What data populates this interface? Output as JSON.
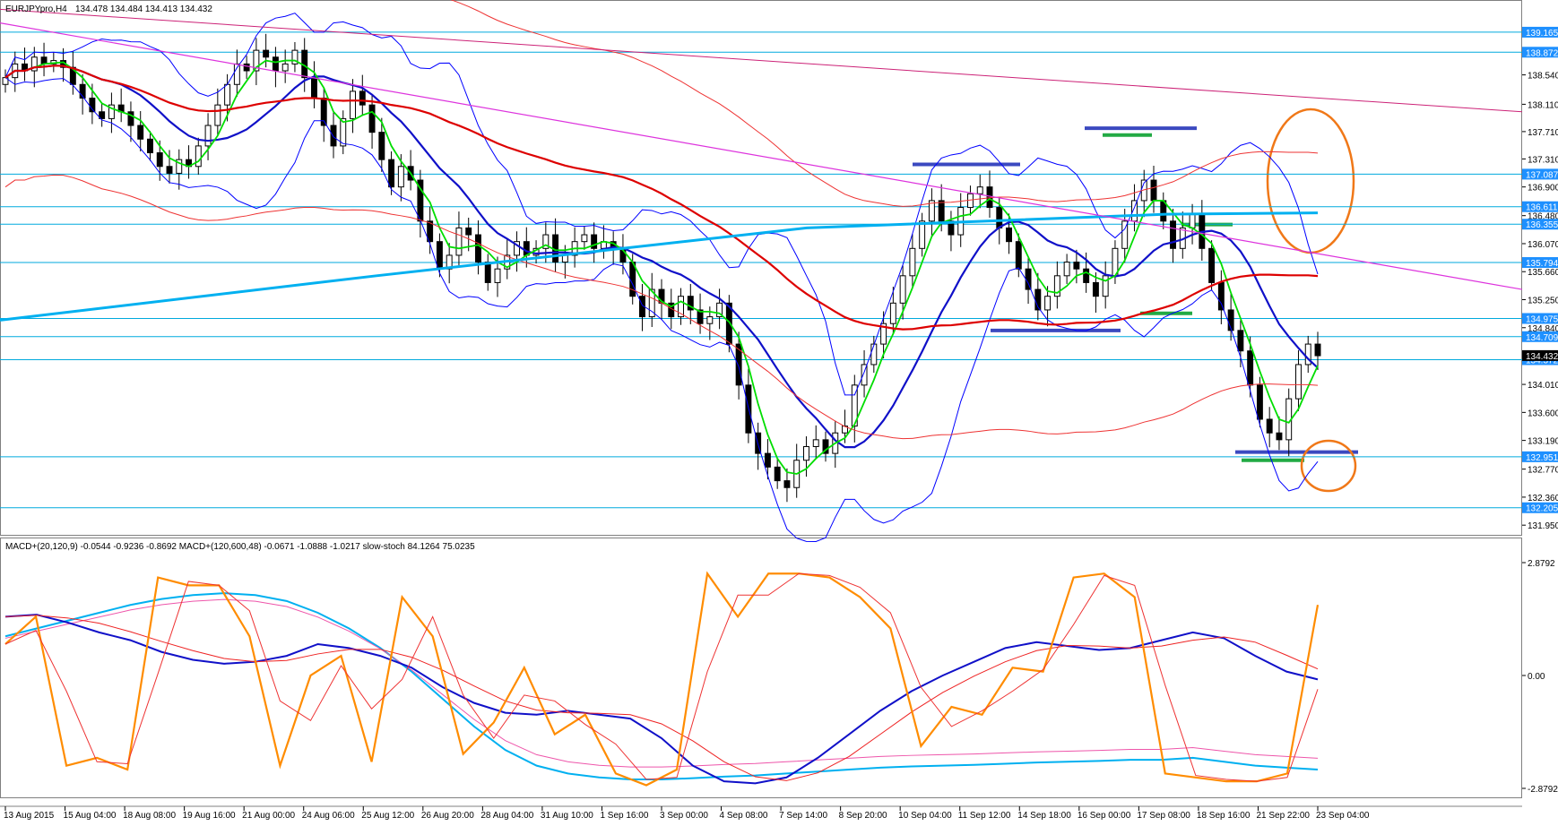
{
  "header": {
    "title": "EURJPYpro,H4",
    "ohlc": "134.478 134.484 134.413 134.432"
  },
  "sub_header": {
    "text": "MACD+(20,120,9) -0.0544 -0.9236 -0.8692  MACD+(120,600,48) -0.0671 -1.0888 -1.0217  slow-stoch 84.1264 75.0235"
  },
  "colors": {
    "candle_up": "#ffffff",
    "candle_down": "#000000",
    "band_blue": "#0000ff",
    "ma_fast": "#00dd00",
    "ma_blue": "#1010c8",
    "ma_red": "#dd0000",
    "ma_cyan": "#00b0f0",
    "trend_magenta": "#dd33dd",
    "level_line": "#00aadd",
    "level_tag_bg": "#1e90ff",
    "annotation_orange": "#f07818",
    "annotation_blue": "#3b49c0",
    "annotation_green": "#22aa44",
    "stoch": "#ff8c00"
  },
  "chart_data": [
    {
      "type": "candlestick",
      "symbol": "EURJPYpro",
      "timeframe": "H4",
      "ylim": [
        131.9,
        139.4
      ],
      "price_ticks": [
        "138.540",
        "138.110",
        "137.710",
        "137.310",
        "136.900",
        "136.480",
        "136.070",
        "135.660",
        "135.250",
        "134.840",
        "134.010",
        "133.600",
        "133.190",
        "132.770",
        "132.360",
        "131.950"
      ],
      "level_lines": [
        "139.165",
        "138.872",
        "137.087",
        "136.611",
        "136.355",
        "135.794",
        "134.975",
        "134.709",
        "134.372",
        "132.951",
        "132.205"
      ],
      "current_price": "134.432",
      "time_labels": [
        "13 Aug 2015",
        "15 Aug 04:00",
        "18 Aug 08:00",
        "19 Aug 16:00",
        "21 Aug 00:00",
        "24 Aug 06:00",
        "25 Aug 12:00",
        "26 Aug 20:00",
        "28 Aug 04:00",
        "31 Aug 10:00",
        "1 Sep 16:00",
        "3 Sep 00:00",
        "4 Sep 08:00",
        "7 Sep 14:00",
        "8 Sep 20:00",
        "10 Sep 04:00",
        "11 Sep 12:00",
        "14 Sep 18:00",
        "16 Sep 00:00",
        "17 Sep 08:00",
        "18 Sep 16:00",
        "21 Sep 22:00",
        "23 Sep 04:00"
      ],
      "close": [
        138.5,
        138.7,
        138.6,
        138.8,
        138.7,
        138.75,
        138.65,
        138.4,
        138.2,
        138.0,
        137.9,
        138.1,
        138.0,
        137.8,
        137.6,
        137.4,
        137.2,
        137.1,
        137.3,
        137.2,
        137.5,
        137.8,
        138.1,
        138.4,
        138.7,
        138.6,
        138.9,
        138.8,
        138.6,
        138.7,
        138.9,
        138.5,
        138.2,
        137.8,
        137.5,
        137.9,
        138.3,
        138.1,
        137.7,
        137.3,
        136.9,
        137.2,
        137.0,
        136.4,
        136.1,
        135.7,
        135.9,
        136.3,
        136.2,
        135.8,
        135.5,
        135.7,
        135.9,
        136.1,
        135.9,
        136.0,
        136.2,
        135.8,
        135.9,
        136.1,
        136.2,
        136.0,
        136.1,
        136.0,
        135.8,
        135.3,
        135.0,
        135.4,
        135.2,
        135.0,
        135.3,
        135.1,
        134.9,
        135.0,
        135.2,
        134.6,
        134.0,
        133.3,
        133.0,
        132.8,
        132.6,
        132.5,
        132.9,
        133.1,
        133.2,
        133.0,
        133.3,
        133.4,
        134.0,
        134.3,
        134.6,
        134.9,
        135.2,
        135.6,
        136.0,
        136.4,
        136.7,
        136.4,
        136.2,
        136.6,
        136.8,
        136.9,
        136.6,
        136.3,
        136.1,
        135.7,
        135.4,
        135.1,
        135.3,
        135.6,
        135.8,
        135.7,
        135.5,
        135.3,
        135.6,
        136.0,
        136.4,
        136.7,
        137.0,
        136.7,
        136.4,
        136.0,
        136.3,
        136.5,
        136.0,
        135.5,
        135.1,
        134.8,
        134.5,
        134.0,
        133.5,
        133.3,
        133.2,
        133.8,
        134.3,
        134.6,
        134.43
      ]
    },
    {
      "type": "line",
      "title": "MACD+(20,120,9) / MACD+(120,600,48) / slow-stoch",
      "ylim": [
        -2.8792,
        2.8792
      ],
      "ticks": [
        "2.8792",
        "0.00",
        "-2.8792"
      ],
      "macd_fast": [
        1.5,
        1.55,
        1.35,
        1.1,
        0.9,
        0.6,
        0.4,
        0.3,
        0.35,
        0.5,
        0.8,
        0.7,
        0.5,
        0.2,
        -0.3,
        -0.7,
        -0.95,
        -1.0,
        -0.9,
        -1.0,
        -1.1,
        -1.6,
        -2.3,
        -2.7,
        -2.75,
        -2.6,
        -2.1,
        -1.5,
        -0.9,
        -0.4,
        0.0,
        0.35,
        0.7,
        0.85,
        0.75,
        0.65,
        0.7,
        0.9,
        1.1,
        0.95,
        0.5,
        0.1,
        -0.1
      ],
      "macd_slow": [
        1.0,
        1.2,
        1.4,
        1.6,
        1.8,
        1.95,
        2.05,
        2.1,
        2.05,
        1.9,
        1.6,
        1.2,
        0.7,
        0.1,
        -0.6,
        -1.3,
        -1.9,
        -2.3,
        -2.5,
        -2.6,
        -2.65,
        -2.65,
        -2.62,
        -2.58,
        -2.55,
        -2.5,
        -2.45,
        -2.4,
        -2.35,
        -2.32,
        -2.3,
        -2.28,
        -2.25,
        -2.22,
        -2.2,
        -2.18,
        -2.15,
        -2.15,
        -2.1,
        -2.2,
        -2.3,
        -2.35,
        -2.4
      ],
      "stoch": [
        0.8,
        1.5,
        -2.3,
        -2.1,
        -2.4,
        2.5,
        2.3,
        2.3,
        1.0,
        -2.3,
        0.0,
        0.5,
        -2.2,
        2.0,
        1.0,
        -2.0,
        -1.2,
        0.2,
        -1.5,
        -1.0,
        -2.5,
        -2.8,
        -2.4,
        2.6,
        1.5,
        2.6,
        2.6,
        2.5,
        2.0,
        1.2,
        -1.8,
        -0.8,
        -1.0,
        0.2,
        0.1,
        2.5,
        2.6,
        2.0,
        -2.5,
        -2.6,
        -2.7,
        -2.7,
        -2.5,
        1.8
      ]
    }
  ]
}
